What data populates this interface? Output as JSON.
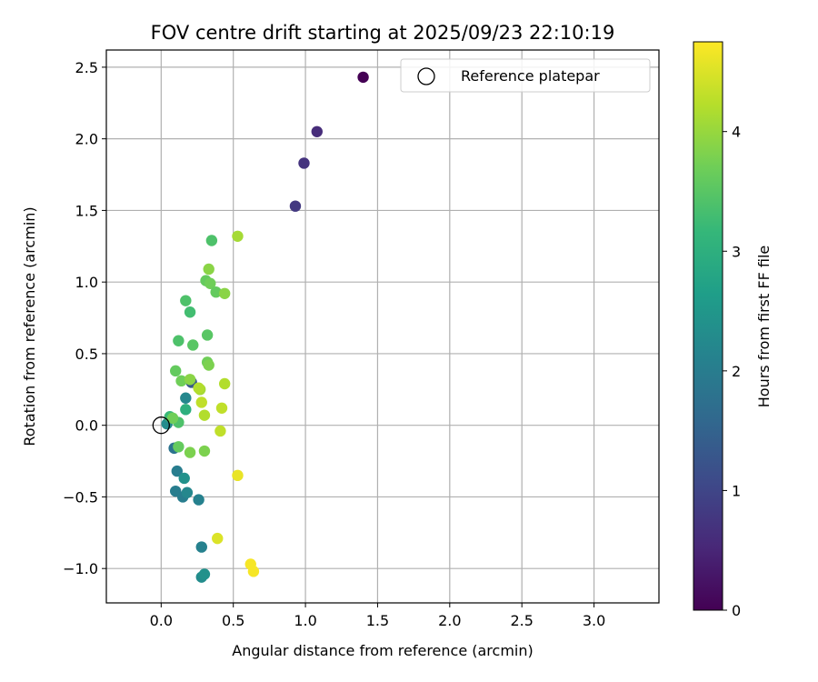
{
  "chart_data": {
    "type": "scatter",
    "title": "FOV centre drift starting at 2025/09/23 22:10:19",
    "xlabel": "Angular distance from reference (arcmin)",
    "ylabel": "Rotation from reference (arcmin)",
    "xlim": [
      -0.38,
      3.45
    ],
    "ylim": [
      -1.24,
      2.62
    ],
    "xticks": [
      0.0,
      0.5,
      1.0,
      1.5,
      2.0,
      2.5,
      3.0
    ],
    "xtick_labels": [
      "0.0",
      "0.5",
      "1.0",
      "1.5",
      "2.0",
      "2.5",
      "3.0"
    ],
    "yticks": [
      -1.0,
      -0.5,
      0.0,
      0.5,
      1.0,
      1.5,
      2.0,
      2.5
    ],
    "ytick_labels": [
      "−1.0",
      "−0.5",
      "0.0",
      "0.5",
      "1.0",
      "1.5",
      "2.0",
      "2.5"
    ],
    "grid": true,
    "legend": {
      "position": "top-right",
      "entries": [
        "Reference platepar"
      ]
    },
    "reference_point": {
      "x": 0.0,
      "y": 0.0
    },
    "colorbar": {
      "label": "Hours from first FF file",
      "range": [
        0,
        4.75
      ],
      "ticks": [
        0,
        1,
        2,
        3,
        4
      ],
      "tick_labels": [
        "0",
        "1",
        "2",
        "3",
        "4"
      ],
      "colormap": [
        "#440154",
        "#482878",
        "#3e4989",
        "#31688e",
        "#26828e",
        "#1f9e89",
        "#35b779",
        "#6ece58",
        "#b5de2b",
        "#fde725"
      ]
    },
    "points": [
      {
        "x": 1.4,
        "y": 2.43,
        "t": 0.0
      },
      {
        "x": 1.08,
        "y": 2.05,
        "t": 0.6
      },
      {
        "x": 0.99,
        "y": 1.83,
        "t": 0.7
      },
      {
        "x": 0.93,
        "y": 1.53,
        "t": 0.8
      },
      {
        "x": 0.21,
        "y": 0.3,
        "t": 1.3
      },
      {
        "x": 0.09,
        "y": -0.16,
        "t": 1.8
      },
      {
        "x": 0.11,
        "y": -0.32,
        "t": 2.0
      },
      {
        "x": 0.1,
        "y": -0.46,
        "t": 2.0
      },
      {
        "x": 0.15,
        "y": -0.5,
        "t": 2.0
      },
      {
        "x": 0.26,
        "y": -0.52,
        "t": 2.1
      },
      {
        "x": 0.28,
        "y": -0.85,
        "t": 2.1
      },
      {
        "x": 0.28,
        "y": -1.06,
        "t": 2.3
      },
      {
        "x": 0.3,
        "y": -1.04,
        "t": 2.4
      },
      {
        "x": 0.17,
        "y": 0.19,
        "t": 2.2
      },
      {
        "x": 0.04,
        "y": 0.01,
        "t": 2.3
      },
      {
        "x": 0.16,
        "y": -0.37,
        "t": 2.4
      },
      {
        "x": 0.18,
        "y": -0.47,
        "t": 2.2
      },
      {
        "x": 0.17,
        "y": 0.11,
        "t": 3.0
      },
      {
        "x": 0.06,
        "y": 0.06,
        "t": 3.2
      },
      {
        "x": 0.12,
        "y": 0.02,
        "t": 3.4
      },
      {
        "x": 0.2,
        "y": 0.79,
        "t": 3.3
      },
      {
        "x": 0.17,
        "y": 0.87,
        "t": 3.4
      },
      {
        "x": 0.12,
        "y": 0.59,
        "t": 3.4
      },
      {
        "x": 0.22,
        "y": 0.56,
        "t": 3.5
      },
      {
        "x": 0.32,
        "y": 0.63,
        "t": 3.5
      },
      {
        "x": 0.35,
        "y": 1.29,
        "t": 3.4
      },
      {
        "x": 0.31,
        "y": 1.01,
        "t": 3.6
      },
      {
        "x": 0.34,
        "y": 0.99,
        "t": 3.7
      },
      {
        "x": 0.38,
        "y": 0.93,
        "t": 3.6
      },
      {
        "x": 0.44,
        "y": 0.92,
        "t": 3.9
      },
      {
        "x": 0.33,
        "y": 1.09,
        "t": 3.9
      },
      {
        "x": 0.1,
        "y": 0.38,
        "t": 3.6
      },
      {
        "x": 0.14,
        "y": 0.31,
        "t": 3.7
      },
      {
        "x": 0.32,
        "y": 0.44,
        "t": 3.7
      },
      {
        "x": 0.33,
        "y": 0.42,
        "t": 3.8
      },
      {
        "x": 0.2,
        "y": 0.32,
        "t": 3.9
      },
      {
        "x": 0.08,
        "y": 0.05,
        "t": 3.7
      },
      {
        "x": 0.12,
        "y": -0.15,
        "t": 3.6
      },
      {
        "x": 0.2,
        "y": -0.19,
        "t": 3.8
      },
      {
        "x": 0.3,
        "y": -0.18,
        "t": 3.8
      },
      {
        "x": 0.27,
        "y": 0.25,
        "t": 4.1
      },
      {
        "x": 0.26,
        "y": 0.26,
        "t": 4.2
      },
      {
        "x": 0.28,
        "y": 0.16,
        "t": 4.3
      },
      {
        "x": 0.3,
        "y": 0.07,
        "t": 4.2
      },
      {
        "x": 0.44,
        "y": 0.29,
        "t": 4.2
      },
      {
        "x": 0.42,
        "y": 0.12,
        "t": 4.3
      },
      {
        "x": 0.41,
        "y": -0.04,
        "t": 4.3
      },
      {
        "x": 0.53,
        "y": 1.32,
        "t": 4.1
      },
      {
        "x": 0.53,
        "y": -0.35,
        "t": 4.6
      },
      {
        "x": 0.39,
        "y": -0.79,
        "t": 4.5
      },
      {
        "x": 0.62,
        "y": -0.97,
        "t": 4.7
      },
      {
        "x": 0.64,
        "y": -1.02,
        "t": 4.7
      }
    ]
  }
}
